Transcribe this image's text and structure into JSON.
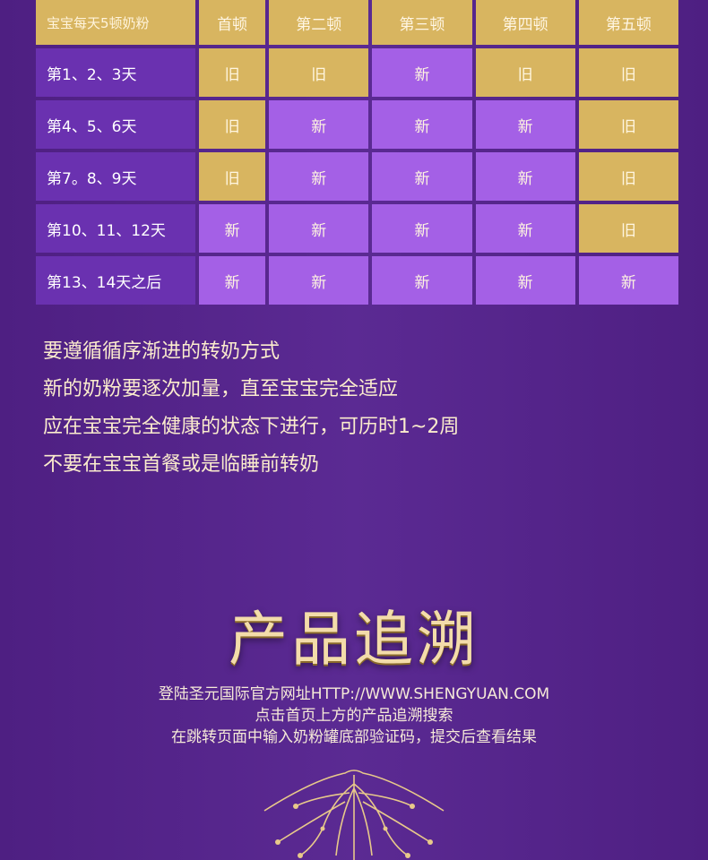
{
  "table": {
    "header": [
      "宝宝每天5顿奶粉",
      "首顿",
      "第二顿",
      "第三顿",
      "第四顿",
      "第五顿"
    ],
    "rows": [
      {
        "label": "第1、2、3天",
        "cells": [
          "旧",
          "旧",
          "新",
          "旧",
          "旧"
        ]
      },
      {
        "label": "第4、5、6天",
        "cells": [
          "旧",
          "新",
          "新",
          "新",
          "旧"
        ]
      },
      {
        "label": "第7。8、9天",
        "cells": [
          "旧",
          "新",
          "新",
          "新",
          "旧"
        ]
      },
      {
        "label": "第10、11、12天",
        "cells": [
          "新",
          "新",
          "新",
          "新",
          "旧"
        ]
      },
      {
        "label": "第13、14天之后",
        "cells": [
          "新",
          "新",
          "新",
          "新",
          "新"
        ]
      }
    ]
  },
  "tips": [
    "要遵循循序渐进的转奶方式",
    "新的奶粉要逐次加量，直至宝宝完全适应",
    "应在宝宝完全健康的状态下进行，可历时1~2周",
    "不要在宝宝首餐或是临睡前转奶"
  ],
  "trace": {
    "title": "产品追溯",
    "lines": [
      "登陆圣元国际官方网址HTTP://WWW.SHENGYUAN.COM",
      "点击首页上方的产品追溯搜索",
      "在跳转页面中输入奶粉罐底部验证码，提交后查看结果"
    ]
  },
  "colors": {
    "gold": "#d8b560",
    "purple_label": "#6a31b0",
    "new_cell": "#a460e6",
    "background": "#55248a"
  }
}
